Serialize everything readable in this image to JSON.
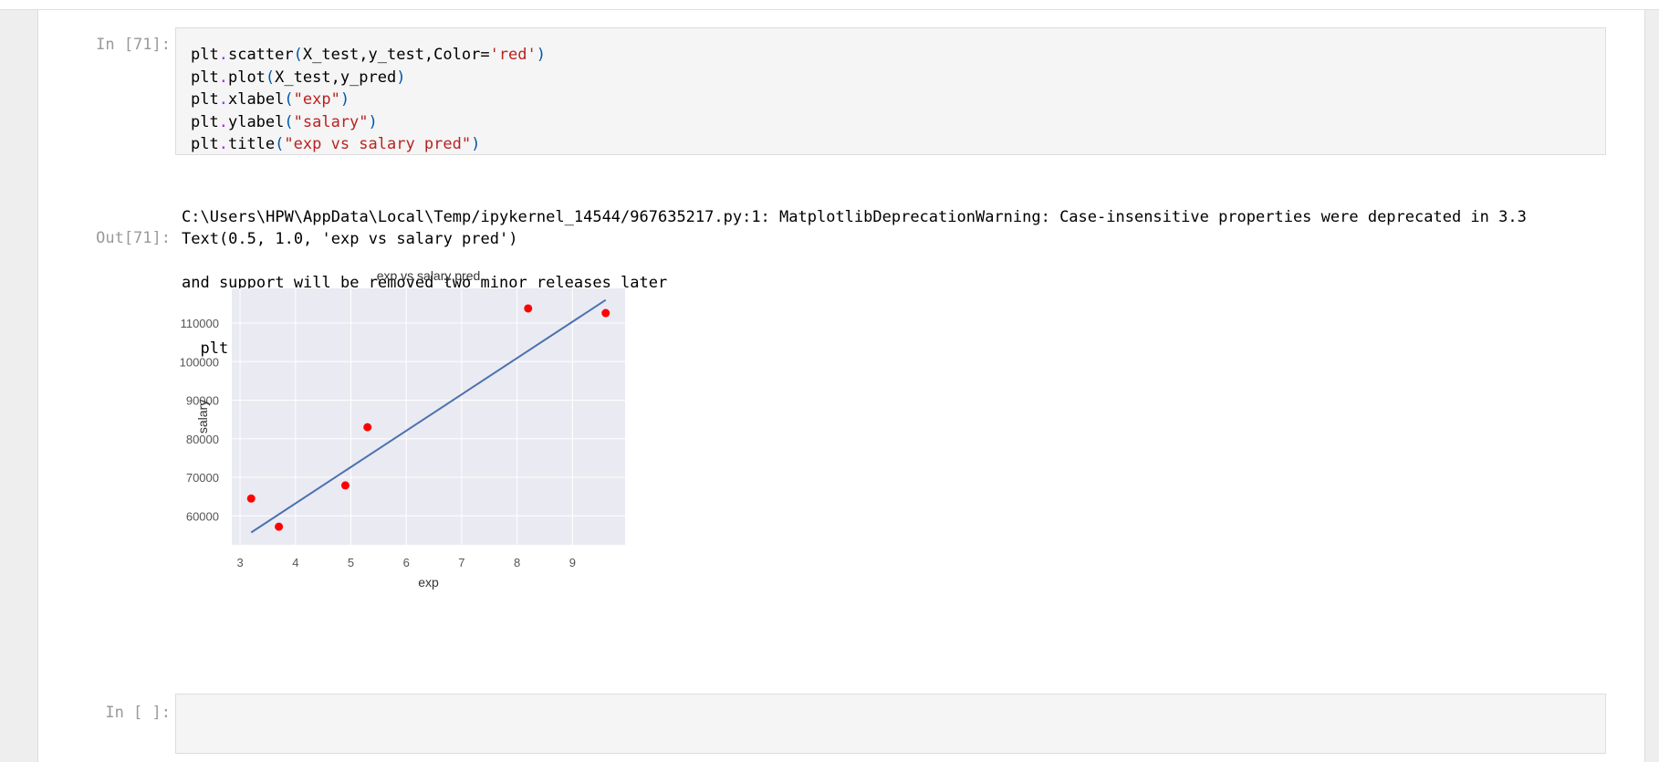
{
  "cell1": {
    "in_prompt": "In [71]:",
    "out_prompt": "Out[71]:",
    "code_lines": [
      {
        "obj": "plt",
        "dot": ".",
        "fn": "scatter",
        "open": "(",
        "args": "X_test,y_test,Color=",
        "str": "'red'",
        "close": ")"
      },
      {
        "obj": "plt",
        "dot": ".",
        "fn": "plot",
        "open": "(",
        "args": "X_test,y_pred",
        "str": "",
        "close": ")"
      },
      {
        "obj": "plt",
        "dot": ".",
        "fn": "xlabel",
        "open": "(",
        "args": "",
        "str": "\"exp\"",
        "close": ")"
      },
      {
        "obj": "plt",
        "dot": ".",
        "fn": "ylabel",
        "open": "(",
        "args": "",
        "str": "\"salary\"",
        "close": ")"
      },
      {
        "obj": "plt",
        "dot": ".",
        "fn": "title",
        "open": "(",
        "args": "",
        "str": "\"exp vs salary pred\"",
        "close": ")"
      }
    ],
    "stderr": [
      "C:\\Users\\HPW\\AppData\\Local\\Temp/ipykernel_14544/967635217.py:1: MatplotlibDeprecationWarning: Case-insensitive properties were deprecated in 3.3",
      "and support will be removed two minor releases later",
      "  plt.scatter(X_test,y_test,Color='red')"
    ],
    "result": "Text(0.5, 1.0, 'exp vs salary pred')"
  },
  "cell2": {
    "in_prompt": "In [ ]:"
  },
  "chart_data": {
    "type": "scatter",
    "title": "exp vs salary pred",
    "xlabel": "exp",
    "ylabel": "salary",
    "xlim": [
      2.85,
      9.95
    ],
    "ylim": [
      52500,
      119000
    ],
    "xticks": [
      3,
      4,
      5,
      6,
      7,
      8,
      9
    ],
    "yticks": [
      60000,
      70000,
      80000,
      90000,
      100000,
      110000
    ],
    "grid": true,
    "series": [
      {
        "kind": "scatter",
        "color": "#ff0000",
        "x": [
          3.2,
          3.7,
          4.9,
          5.3,
          8.2,
          9.6
        ],
        "y": [
          64500,
          57200,
          67900,
          83000,
          113800,
          112600
        ]
      },
      {
        "kind": "line",
        "color": "#4c72b0",
        "x": [
          3.2,
          9.6
        ],
        "y": [
          55700,
          116000
        ]
      }
    ],
    "colors": {
      "background": "#eaeaf2",
      "grid": "#ffffff",
      "text": "#555555",
      "title": "#333333"
    }
  }
}
